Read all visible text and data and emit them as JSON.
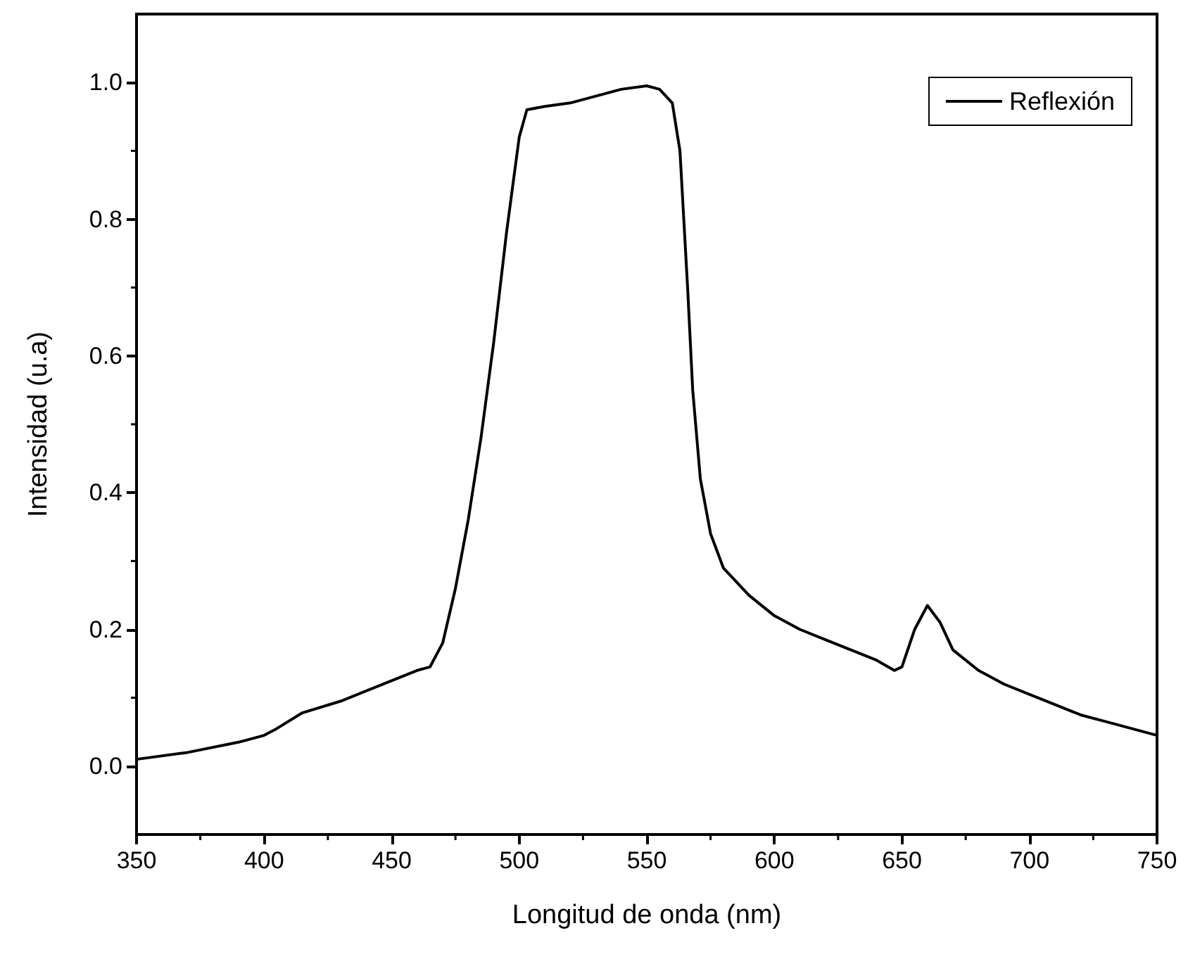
{
  "chart_data": {
    "type": "line",
    "xlabel": "Longitud de onda (nm)",
    "ylabel": "Intensidad (u.a)",
    "legend": "top right",
    "grid": false,
    "marker": "none",
    "line_style": "solid",
    "xlim": [
      350,
      750
    ],
    "ylim": [
      -0.1,
      1.1
    ],
    "xticks": [
      350,
      400,
      450,
      500,
      550,
      600,
      650,
      700,
      750
    ],
    "yticks": [
      {
        "value": 0,
        "label": "0.0"
      },
      {
        "value": 0.2,
        "label": "0.2"
      },
      {
        "value": 0.4,
        "label": "0.4"
      },
      {
        "value": 0.6,
        "label": "0.6"
      },
      {
        "value": 0.8,
        "label": "0.8"
      },
      {
        "value": 1,
        "label": "1.0"
      }
    ],
    "x": [
      350,
      370,
      390,
      400,
      405,
      415,
      430,
      450,
      460,
      465,
      470,
      475,
      480,
      485,
      490,
      495,
      500,
      503,
      510,
      520,
      530,
      540,
      550,
      555,
      560,
      563,
      566,
      568,
      571,
      575,
      580,
      590,
      600,
      610,
      620,
      630,
      640,
      647,
      650,
      655,
      660,
      665,
      670,
      680,
      690,
      700,
      710,
      720,
      730,
      740,
      750
    ],
    "series": [
      {
        "name": "Reflexión",
        "color": "#000000",
        "values": [
          0.01,
          0.02,
          0.035,
          0.045,
          0.055,
          0.078,
          0.095,
          0.125,
          0.14,
          0.145,
          0.18,
          0.26,
          0.36,
          0.48,
          0.62,
          0.78,
          0.92,
          0.96,
          0.965,
          0.97,
          0.98,
          0.99,
          0.995,
          0.99,
          0.97,
          0.9,
          0.7,
          0.55,
          0.42,
          0.34,
          0.29,
          0.25,
          0.22,
          0.2,
          0.185,
          0.17,
          0.155,
          0.14,
          0.145,
          0.2,
          0.235,
          0.21,
          0.17,
          0.14,
          0.12,
          0.105,
          0.09,
          0.075,
          0.065,
          0.055,
          0.045
        ]
      }
    ]
  }
}
